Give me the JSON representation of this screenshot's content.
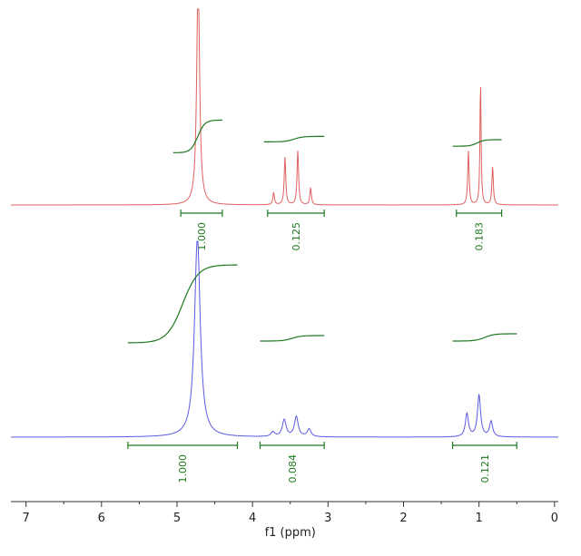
{
  "colors": {
    "top_spectrum": "#e06060",
    "bottom_spectrum": "#5a5ae0",
    "integral": "#1f7a1f",
    "axis": "#333333"
  },
  "chart_data": [
    {
      "type": "line",
      "series": [
        {
          "peaks": [
            {
              "ppm": 4.72,
              "height": 1.55,
              "width": 0.022
            }
          ]
        },
        {
          "peaks": [
            {
              "ppm": 3.72,
              "height": 0.08,
              "width": 0.012
            },
            {
              "ppm": 3.57,
              "height": 0.31,
              "width": 0.012
            },
            {
              "ppm": 3.4,
              "height": 0.35,
              "width": 0.012
            },
            {
              "ppm": 3.23,
              "height": 0.11,
              "width": 0.012
            },
            {
              "ppm": 1.14,
              "height": 0.35,
              "width": 0.011
            },
            {
              "ppm": 0.98,
              "height": 0.8,
              "width": 0.009
            },
            {
              "ppm": 0.82,
              "height": 0.25,
              "width": 0.011
            }
          ]
        }
      ],
      "integrals": [
        {
          "from": 5.05,
          "to": 4.4,
          "value": "1.000",
          "bracket": [
            4.95,
            4.4
          ],
          "rise": [
            0.48,
            0.78
          ]
        },
        {
          "from": 3.85,
          "to": 3.05,
          "value": "0.125",
          "bracket": [
            3.8,
            3.05
          ],
          "rise": [
            0.58,
            0.63
          ]
        },
        {
          "from": 1.35,
          "to": 0.7,
          "value": "0.183",
          "bracket": [
            1.3,
            0.7
          ],
          "rise": [
            0.54,
            0.6
          ]
        }
      ]
    },
    {
      "type": "line",
      "series": [
        {
          "peaks": [
            {
              "ppm": 4.73,
              "height": 1.3,
              "width": 0.045
            }
          ]
        },
        {
          "peaks": [
            {
              "ppm": 3.73,
              "height": 0.03,
              "width": 0.03
            },
            {
              "ppm": 3.58,
              "height": 0.11,
              "width": 0.03
            },
            {
              "ppm": 3.42,
              "height": 0.13,
              "width": 0.03
            },
            {
              "ppm": 3.25,
              "height": 0.05,
              "width": 0.03
            },
            {
              "ppm": 1.16,
              "height": 0.15,
              "width": 0.025
            },
            {
              "ppm": 1.0,
              "height": 0.27,
              "width": 0.025
            },
            {
              "ppm": 0.84,
              "height": 0.1,
              "width": 0.025
            }
          ]
        }
      ],
      "integrals": [
        {
          "from": 5.65,
          "to": 4.2,
          "value": "1.000",
          "bracket": [
            5.65,
            4.2
          ],
          "rise": [
            0.52,
            0.95
          ]
        },
        {
          "from": 3.9,
          "to": 3.05,
          "value": "0.084",
          "bracket": [
            3.9,
            3.05
          ],
          "rise": [
            0.53,
            0.56
          ]
        },
        {
          "from": 1.35,
          "to": 0.5,
          "value": "0.121",
          "bracket": [
            1.35,
            0.5
          ],
          "rise": [
            0.53,
            0.57
          ]
        }
      ]
    }
  ],
  "axis": {
    "xlabel": "f1 (ppm)",
    "xlim": [
      7.2,
      -0.05
    ],
    "ticks": [
      "7",
      "6",
      "5",
      "4",
      "3",
      "2",
      "1",
      "0"
    ]
  }
}
